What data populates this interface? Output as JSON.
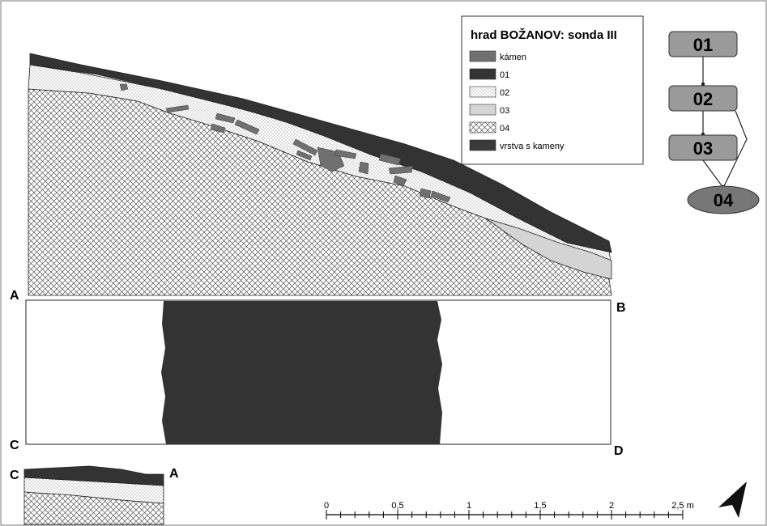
{
  "legend": {
    "title": "hrad BOŽANOV: sonda III",
    "items": [
      {
        "label": "kámen",
        "fill": "#707070"
      },
      {
        "label": "01",
        "fill": "#333333"
      },
      {
        "label": "02",
        "fill": "dots"
      },
      {
        "label": "03",
        "fill": "#d4d4d4"
      },
      {
        "label": "04",
        "fill": "hatch"
      },
      {
        "label": "vrstva s kameny",
        "fill": "#3a3a3a"
      }
    ]
  },
  "corners": {
    "a": "A",
    "b": "B",
    "c": "C",
    "d": "D"
  },
  "small_section": {
    "left": "C",
    "right": "A"
  },
  "scale": {
    "ticks": [
      "0",
      "0,5",
      "1",
      "1,5",
      "2",
      "2,5 m"
    ]
  },
  "harris": {
    "n1": "01",
    "n2": "02",
    "n3": "03",
    "n4": "04"
  },
  "colors": {
    "dark": "#333333",
    "node_fill": "#9a9a9a",
    "stone": "#707070",
    "light": "#d4d4d4"
  }
}
